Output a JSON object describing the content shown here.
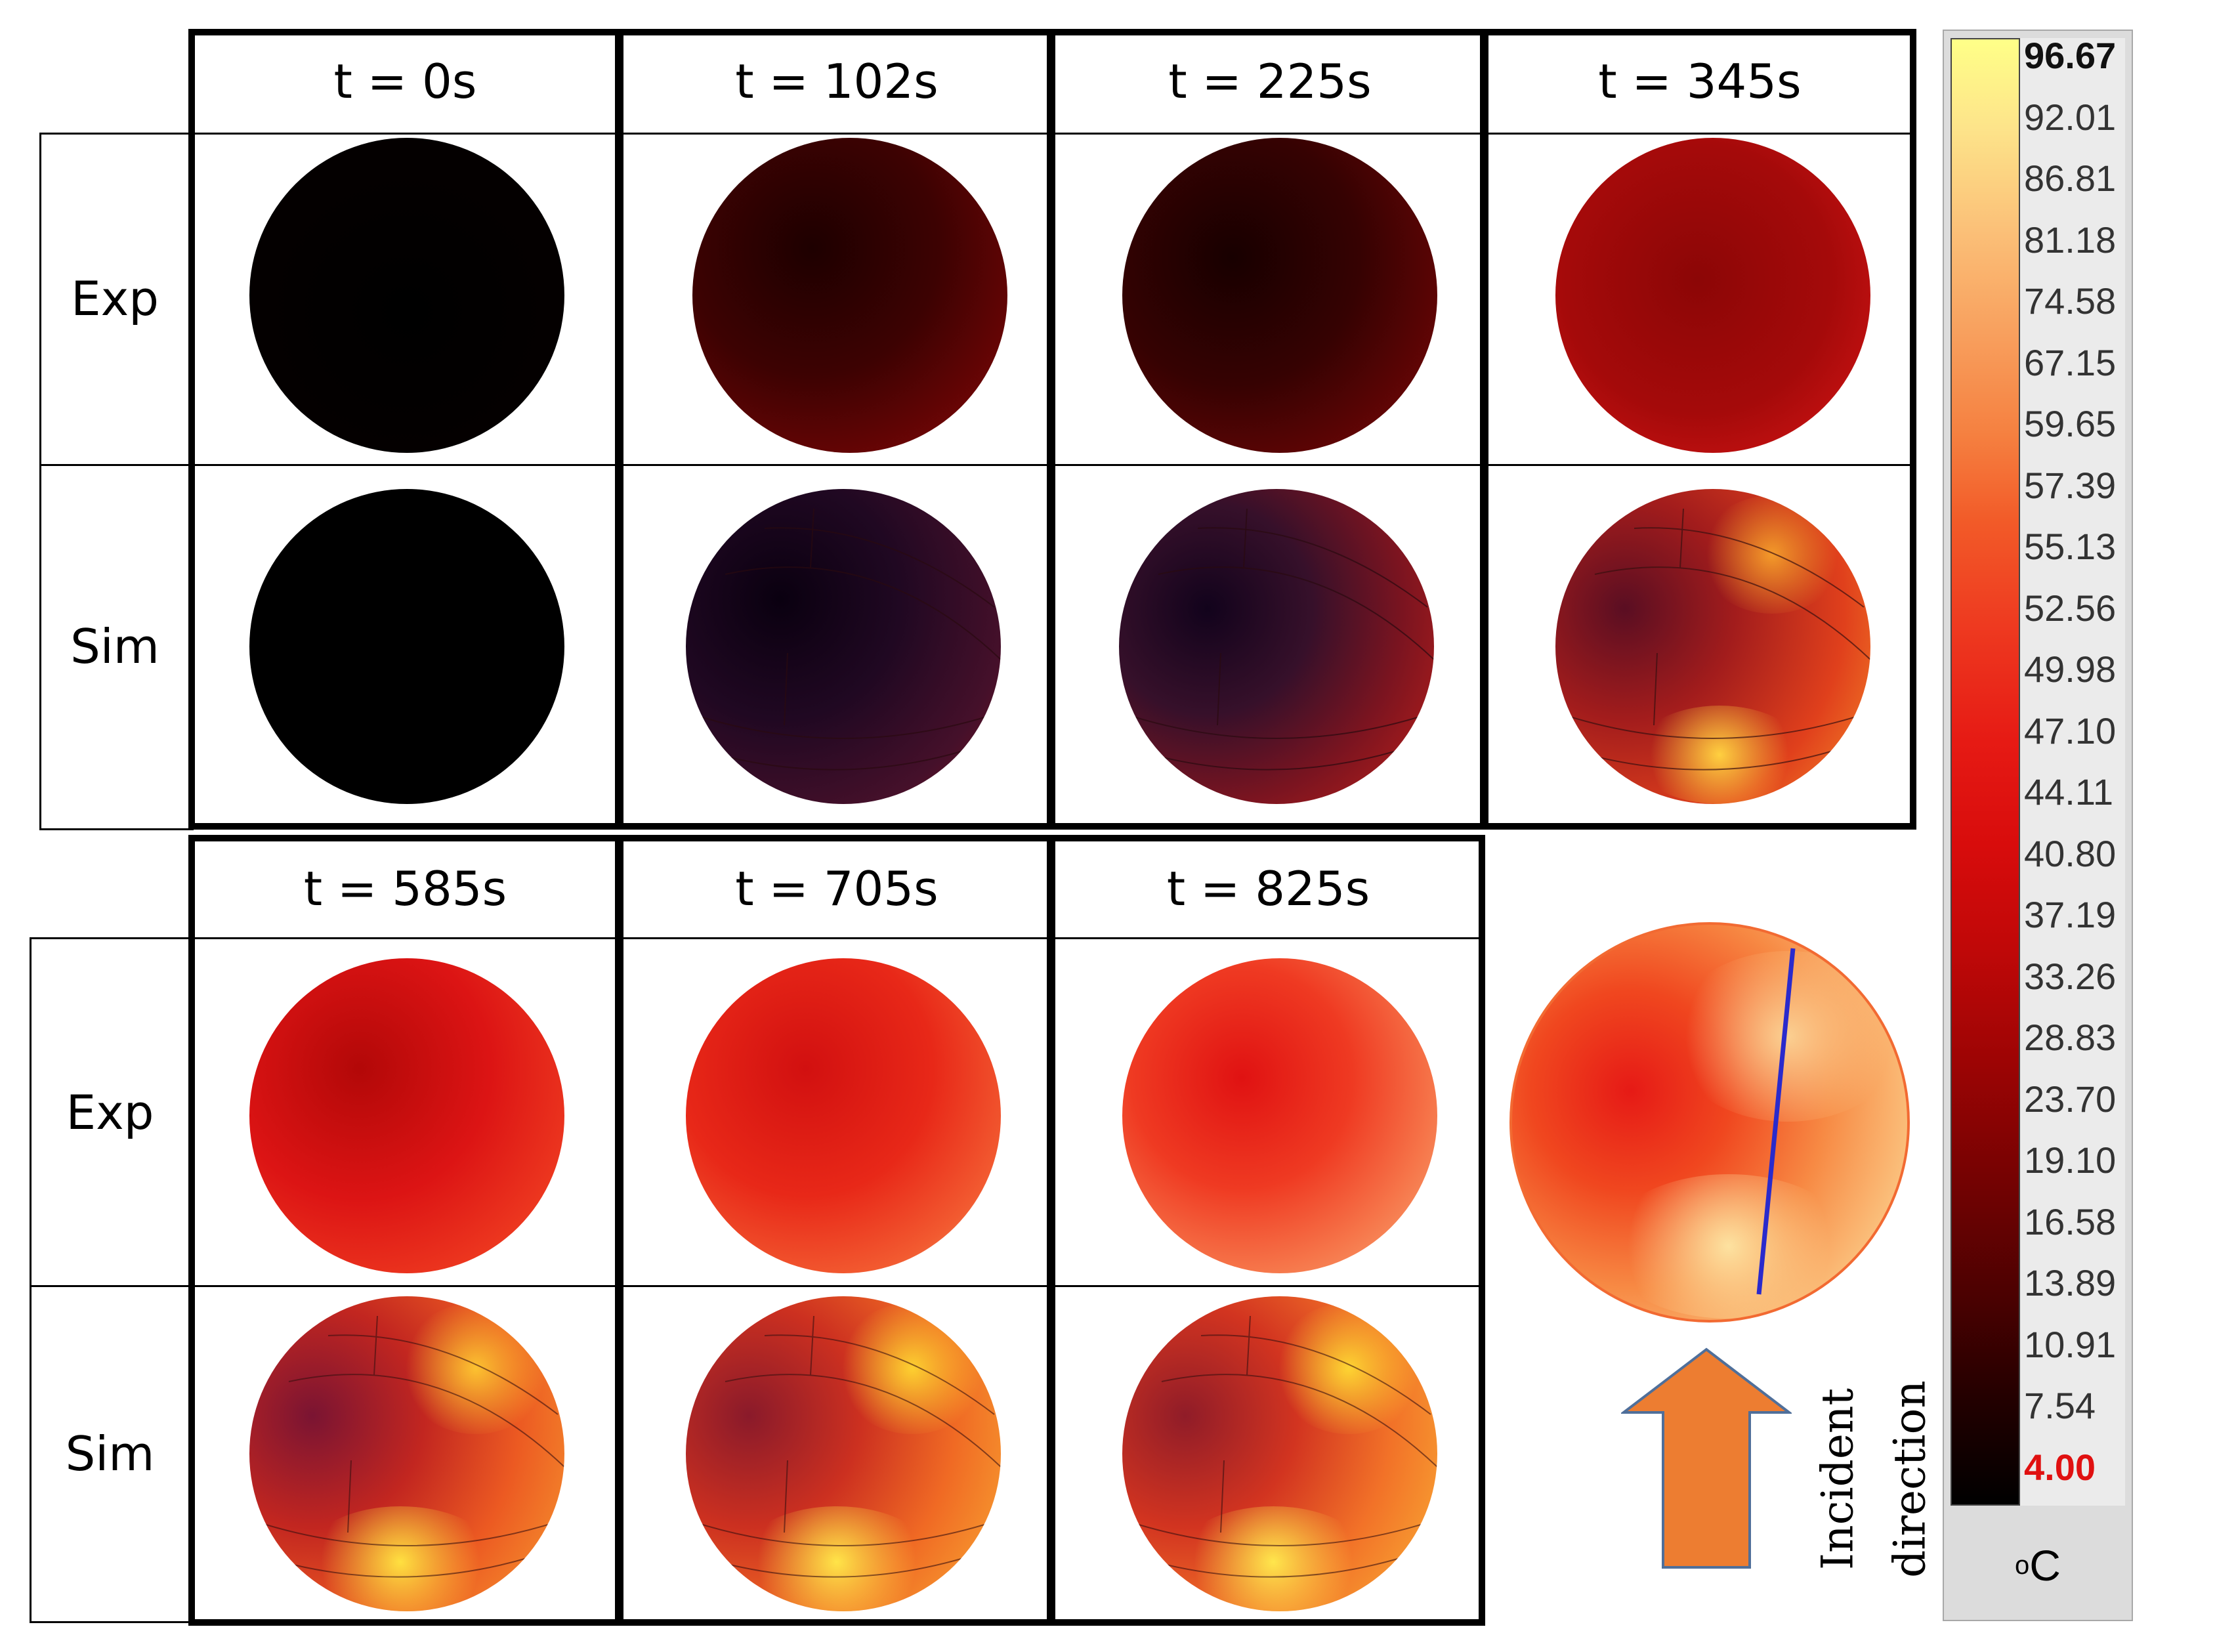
{
  "top_headers": [
    "t = 0s",
    "t = 102s",
    "t = 225s",
    "t = 345s"
  ],
  "bottom_headers": [
    "t = 585s",
    "t = 705s",
    "t = 825s"
  ],
  "row_labels": {
    "exp": "Exp",
    "sim": "Sim"
  },
  "incident_label": [
    "Incident",
    "direction"
  ],
  "colorbar": {
    "unit": "oC",
    "ticks": [
      "96.67",
      "92.01",
      "86.81",
      "81.18",
      "74.58",
      "67.15",
      "59.65",
      "57.39",
      "55.13",
      "52.56",
      "49.98",
      "47.10",
      "44.11",
      "40.80",
      "37.19",
      "33.26",
      "28.83",
      "23.70",
      "19.10",
      "16.58",
      "13.89",
      "10.91",
      "7.54",
      "4.00"
    ]
  },
  "colors": {
    "arrow": "#ed7d31",
    "line": "#2a2acc"
  }
}
